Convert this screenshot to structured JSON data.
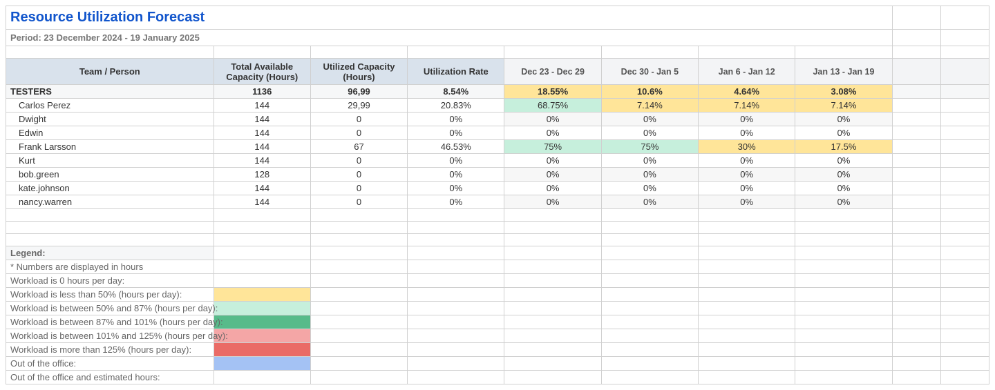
{
  "title": "Resource Utilization Forecast",
  "period": "Period: 23 December 2024 - 19 January 2025",
  "columns": {
    "team_person": "Team / Person",
    "total_avail": "Total Available Capacity (Hours)",
    "utilized": "Utilized Capacity (Hours)",
    "util_rate": "Utilization Rate",
    "weeks": [
      "Dec 23 - Dec 29",
      "Dec 30 - Jan 5",
      "Jan 6 - Jan 12",
      "Jan 13 - Jan 19"
    ]
  },
  "group": {
    "name": "TESTERS",
    "total": "1136",
    "utilized": "96,99",
    "rate": "8.54%",
    "weeks": [
      {
        "val": "18.55%",
        "bg": "#ffe599"
      },
      {
        "val": "10.6%",
        "bg": "#ffe599"
      },
      {
        "val": "4.64%",
        "bg": "#ffe599"
      },
      {
        "val": "3.08%",
        "bg": "#ffe599"
      }
    ]
  },
  "people": [
    {
      "name": "Carlos Perez",
      "total": "144",
      "utilized": "29,99",
      "rate": "20.83%",
      "weeks": [
        {
          "val": "68.75%",
          "bg": "#c6efdc"
        },
        {
          "val": "7.14%",
          "bg": "#ffe599"
        },
        {
          "val": "7.14%",
          "bg": "#ffe599"
        },
        {
          "val": "7.14%",
          "bg": "#ffe599"
        }
      ]
    },
    {
      "name": "Dwight",
      "total": "144",
      "utilized": "0",
      "rate": "0%",
      "weeks": [
        {
          "val": "0%",
          "bg": "#f7f7f7"
        },
        {
          "val": "0%",
          "bg": "#f7f7f7"
        },
        {
          "val": "0%",
          "bg": "#f7f7f7"
        },
        {
          "val": "0%",
          "bg": "#f7f7f7"
        }
      ]
    },
    {
      "name": "Edwin",
      "total": "144",
      "utilized": "0",
      "rate": "0%",
      "weeks": [
        {
          "val": "0%",
          "bg": "#ffffff"
        },
        {
          "val": "0%",
          "bg": "#ffffff"
        },
        {
          "val": "0%",
          "bg": "#ffffff"
        },
        {
          "val": "0%",
          "bg": "#ffffff"
        }
      ]
    },
    {
      "name": "Frank Larsson",
      "total": "144",
      "utilized": "67",
      "rate": "46.53%",
      "weeks": [
        {
          "val": "75%",
          "bg": "#c6efdc"
        },
        {
          "val": "75%",
          "bg": "#c6efdc"
        },
        {
          "val": "30%",
          "bg": "#ffe599"
        },
        {
          "val": "17.5%",
          "bg": "#ffe599"
        }
      ]
    },
    {
      "name": "Kurt",
      "total": "144",
      "utilized": "0",
      "rate": "0%",
      "weeks": [
        {
          "val": "0%",
          "bg": "#ffffff"
        },
        {
          "val": "0%",
          "bg": "#ffffff"
        },
        {
          "val": "0%",
          "bg": "#ffffff"
        },
        {
          "val": "0%",
          "bg": "#ffffff"
        }
      ]
    },
    {
      "name": "bob.green",
      "total": "128",
      "utilized": "0",
      "rate": "0%",
      "weeks": [
        {
          "val": "0%",
          "bg": "#f7f7f7"
        },
        {
          "val": "0%",
          "bg": "#f7f7f7"
        },
        {
          "val": "0%",
          "bg": "#f7f7f7"
        },
        {
          "val": "0%",
          "bg": "#f7f7f7"
        }
      ]
    },
    {
      "name": "kate.johnson",
      "total": "144",
      "utilized": "0",
      "rate": "0%",
      "weeks": [
        {
          "val": "0%",
          "bg": "#ffffff"
        },
        {
          "val": "0%",
          "bg": "#ffffff"
        },
        {
          "val": "0%",
          "bg": "#ffffff"
        },
        {
          "val": "0%",
          "bg": "#ffffff"
        }
      ]
    },
    {
      "name": "nancy.warren",
      "total": "144",
      "utilized": "0",
      "rate": "0%",
      "weeks": [
        {
          "val": "0%",
          "bg": "#f7f7f7"
        },
        {
          "val": "0%",
          "bg": "#f7f7f7"
        },
        {
          "val": "0%",
          "bg": "#f7f7f7"
        },
        {
          "val": "0%",
          "bg": "#f7f7f7"
        }
      ]
    }
  ],
  "legend": {
    "header": "Legend:",
    "note": "* Numbers are displayed in hours",
    "rows": [
      {
        "label": "Workload is 0 hours per day:",
        "swatch": "#ffffff"
      },
      {
        "label": "Workload is less than 50% (hours per day):",
        "swatch": "#ffe599"
      },
      {
        "label": "Workload is between 50% and 87% (hours per day):",
        "swatch": "#c6efdc"
      },
      {
        "label": "Workload is between 87% and 101% (hours per day):",
        "swatch": "#57bb8a"
      },
      {
        "label": "Workload is between 101% and 125% (hours per day):",
        "swatch": "#f4a6a6"
      },
      {
        "label": "Workload is more than 125% (hours per day):",
        "swatch": "#ea6b66"
      },
      {
        "label": "Out of the office:",
        "swatch": "#a4c2f4"
      },
      {
        "label": "Out of the office and estimated hours:",
        "swatch": "#ffffff"
      }
    ]
  },
  "palette": {
    "hdr_bg": "#d9e2ec",
    "week_hdr_bg": "#f3f4f6",
    "border": "#d0d0d0",
    "title_color": "#1155cc"
  }
}
